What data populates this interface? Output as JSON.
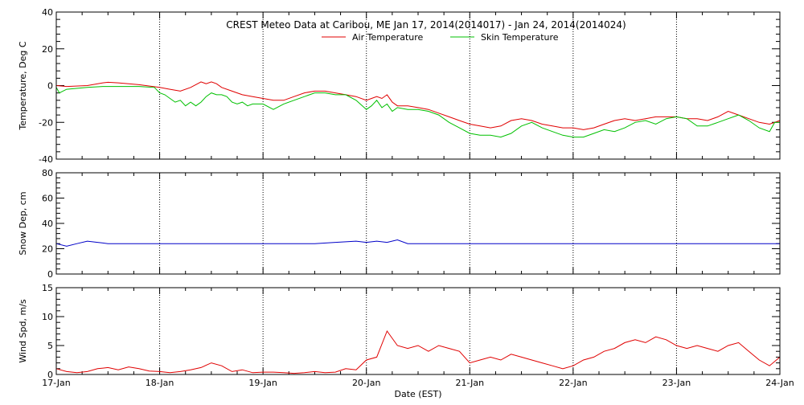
{
  "chart_data": {
    "type": "line",
    "title": "CREST Meteo Data at Caribou, ME   Jan 17, 2014(2014017) - Jan 24, 2014(2014024)",
    "xlabel": "Date (EST)",
    "x_tick_labels": [
      "17-Jan",
      "18-Jan",
      "19-Jan",
      "20-Jan",
      "21-Jan",
      "22-Jan",
      "23-Jan",
      "24-Jan"
    ],
    "xlim_days": [
      0,
      7
    ],
    "grid": "vertical dotted at day boundaries",
    "colors": {
      "air": "#e00000",
      "skin": "#00c000",
      "snow": "#0000c8",
      "wind": "#e00000",
      "axis": "#000000"
    },
    "panels": [
      {
        "ylabel": "Temperature, Deg C",
        "ylim": [
          -40,
          40
        ],
        "y_ticks": [
          -40,
          -20,
          0,
          20,
          40
        ],
        "legend_position": "top-center",
        "series": [
          {
            "name": "Air Temperature",
            "color": "#e00000",
            "x": [
              0,
              0.1,
              0.3,
              0.45,
              0.5,
              0.6,
              0.8,
              1.0,
              1.1,
              1.2,
              1.3,
              1.4,
              1.45,
              1.5,
              1.55,
              1.6,
              1.7,
              1.8,
              1.9,
              2.0,
              2.1,
              2.2,
              2.3,
              2.4,
              2.5,
              2.6,
              2.7,
              2.8,
              2.9,
              3.0,
              3.05,
              3.1,
              3.15,
              3.2,
              3.25,
              3.3,
              3.4,
              3.5,
              3.6,
              3.7,
              3.8,
              3.9,
              4.0,
              4.1,
              4.2,
              4.3,
              4.4,
              4.5,
              4.6,
              4.7,
              4.8,
              4.9,
              5.0,
              5.1,
              5.2,
              5.3,
              5.4,
              5.5,
              5.6,
              5.7,
              5.8,
              5.9,
              6.0,
              6.1,
              6.2,
              6.3,
              6.4,
              6.5,
              6.6,
              6.7,
              6.8,
              6.9,
              7.0
            ],
            "y": [
              0,
              -0.5,
              0,
              1.5,
              1.8,
              1.5,
              0.5,
              -1,
              -2,
              -3,
              -1,
              2,
              1,
              2,
              1,
              -1,
              -3,
              -5,
              -6,
              -7,
              -8,
              -8,
              -6,
              -4,
              -3,
              -3,
              -4,
              -5,
              -6,
              -8,
              -7,
              -6,
              -7,
              -5,
              -9,
              -11,
              -11,
              -12,
              -13,
              -15,
              -17,
              -19,
              -21,
              -22,
              -23,
              -22,
              -19,
              -18,
              -19,
              -21,
              -22,
              -23,
              -23,
              -24,
              -23,
              -21,
              -19,
              -18,
              -19,
              -18,
              -17,
              -17,
              -17,
              -18,
              -18,
              -19,
              -17,
              -14,
              -16,
              -18,
              -20,
              -21,
              -19
            ]
          },
          {
            "name": "Skin Temperature",
            "color": "#00c000",
            "x": [
              0,
              0.03,
              0.1,
              0.3,
              0.45,
              0.6,
              0.8,
              0.95,
              1.0,
              1.05,
              1.1,
              1.15,
              1.2,
              1.25,
              1.3,
              1.35,
              1.4,
              1.45,
              1.5,
              1.55,
              1.6,
              1.65,
              1.7,
              1.75,
              1.8,
              1.85,
              1.9,
              2.0,
              2.1,
              2.2,
              2.3,
              2.4,
              2.5,
              2.6,
              2.7,
              2.8,
              2.9,
              3.0,
              3.05,
              3.1,
              3.15,
              3.2,
              3.25,
              3.3,
              3.4,
              3.5,
              3.6,
              3.7,
              3.8,
              3.9,
              4.0,
              4.1,
              4.2,
              4.3,
              4.4,
              4.5,
              4.6,
              4.7,
              4.8,
              4.9,
              5.0,
              5.1,
              5.2,
              5.3,
              5.4,
              5.5,
              5.6,
              5.7,
              5.8,
              5.9,
              6.0,
              6.1,
              6.2,
              6.3,
              6.4,
              6.5,
              6.6,
              6.7,
              6.8,
              6.9,
              6.95,
              7.0
            ],
            "y": [
              -1,
              -4,
              -2,
              -1,
              -0.5,
              -0.5,
              -0.5,
              -1,
              -4,
              -5,
              -7,
              -9,
              -8,
              -11,
              -9,
              -11,
              -9,
              -6,
              -4,
              -5,
              -5,
              -6,
              -9,
              -10,
              -9,
              -11,
              -10,
              -10,
              -13,
              -10,
              -8,
              -6,
              -4,
              -4,
              -5,
              -5,
              -8,
              -13,
              -11,
              -8,
              -12,
              -10,
              -14,
              -12,
              -13,
              -13,
              -14,
              -16,
              -20,
              -23,
              -26,
              -27,
              -27,
              -28,
              -26,
              -22,
              -20,
              -23,
              -25,
              -27,
              -28,
              -28,
              -26,
              -24,
              -25,
              -23,
              -20,
              -19,
              -21,
              -18,
              -17,
              -18,
              -22,
              -22,
              -20,
              -18,
              -16,
              -19,
              -23,
              -25,
              -20,
              -20
            ]
          }
        ]
      },
      {
        "ylabel": "Snow Dep, cm",
        "ylim": [
          0,
          80
        ],
        "y_ticks": [
          0,
          20,
          40,
          60,
          80
        ],
        "series": [
          {
            "name": "Snow Depth",
            "color": "#0000c8",
            "x": [
              0,
              0.1,
              0.2,
              0.3,
              0.4,
              0.5,
              0.6,
              0.7,
              0.8,
              0.9,
              1.0,
              1.5,
              2.0,
              2.5,
              2.7,
              2.9,
              3.0,
              3.1,
              3.2,
              3.3,
              3.4,
              3.5,
              4.0,
              4.5,
              5.0,
              5.5,
              6.0,
              6.5,
              7.0
            ],
            "y": [
              24,
              22,
              24,
              26,
              25,
              24,
              24,
              24,
              24,
              24,
              24,
              24,
              24,
              24,
              25,
              26,
              25,
              26,
              25,
              27,
              24,
              24,
              24,
              24,
              24,
              24,
              24,
              24,
              24
            ]
          }
        ]
      },
      {
        "ylabel": "Wind Spd, m/s",
        "ylim": [
          0,
          15
        ],
        "y_ticks": [
          0,
          5,
          10,
          15
        ],
        "series": [
          {
            "name": "Wind Speed",
            "color": "#e00000",
            "x": [
              0,
              0.1,
              0.2,
              0.3,
              0.4,
              0.5,
              0.6,
              0.7,
              0.8,
              0.9,
              1.0,
              1.1,
              1.2,
              1.3,
              1.4,
              1.5,
              1.6,
              1.7,
              1.8,
              1.9,
              2.0,
              2.1,
              2.2,
              2.3,
              2.4,
              2.5,
              2.6,
              2.7,
              2.8,
              2.9,
              3.0,
              3.1,
              3.2,
              3.3,
              3.4,
              3.5,
              3.6,
              3.7,
              3.8,
              3.9,
              4.0,
              4.1,
              4.2,
              4.3,
              4.4,
              4.5,
              4.6,
              4.7,
              4.8,
              4.9,
              5.0,
              5.1,
              5.2,
              5.3,
              5.4,
              5.5,
              5.6,
              5.7,
              5.8,
              5.9,
              6.0,
              6.1,
              6.2,
              6.3,
              6.4,
              6.5,
              6.6,
              6.7,
              6.8,
              6.9,
              7.0
            ],
            "y": [
              1,
              0.5,
              0.3,
              0.5,
              1.0,
              1.2,
              0.8,
              1.3,
              1.0,
              0.6,
              0.5,
              0.3,
              0.5,
              0.8,
              1.2,
              2.0,
              1.5,
              0.5,
              0.8,
              0.3,
              0.4,
              0.4,
              0.3,
              0.2,
              0.3,
              0.5,
              0.3,
              0.4,
              1.0,
              0.8,
              2.5,
              3.0,
              7.5,
              5.0,
              4.5,
              5.0,
              4.0,
              5.0,
              4.5,
              4.0,
              2.0,
              2.5,
              3.0,
              2.5,
              3.5,
              3.0,
              2.5,
              2.0,
              1.5,
              1.0,
              1.5,
              2.5,
              3.0,
              4.0,
              4.5,
              5.5,
              6.0,
              5.5,
              6.5,
              6.0,
              5.0,
              4.5,
              5.0,
              4.5,
              4.0,
              5.0,
              5.5,
              4.0,
              2.5,
              1.5,
              3.0
            ]
          }
        ]
      }
    ]
  }
}
